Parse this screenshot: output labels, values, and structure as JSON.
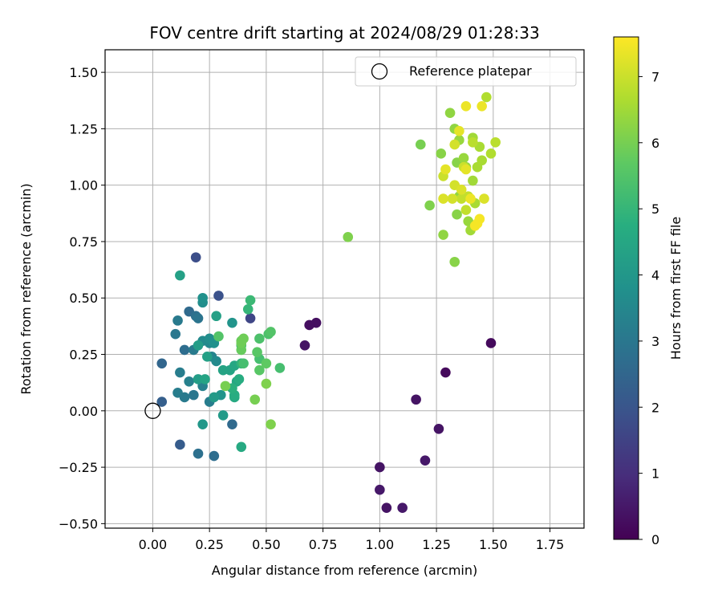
{
  "chart_data": {
    "type": "scatter",
    "title": "FOV centre drift starting at 2024/08/29 01:28:33",
    "xlabel": "Angular distance from reference (arcmin)",
    "ylabel": "Rotation from reference (arcmin)",
    "xlim": [
      -0.21,
      1.9
    ],
    "ylim": [
      -0.52,
      1.6
    ],
    "xticks": [
      "0.00",
      "0.25",
      "0.50",
      "0.75",
      "1.00",
      "1.25",
      "1.50",
      "1.75"
    ],
    "yticks": [
      "−0.50",
      "−0.25",
      "0.00",
      "0.25",
      "0.50",
      "0.75",
      "1.00",
      "1.25",
      "1.50"
    ],
    "xtick_values": [
      0,
      0.25,
      0.5,
      0.75,
      1.0,
      1.25,
      1.5,
      1.75
    ],
    "ytick_values": [
      -0.5,
      -0.25,
      0,
      0.25,
      0.5,
      0.75,
      1.0,
      1.25,
      1.5
    ],
    "grid": true,
    "legend": {
      "position": "top-right",
      "entries": [
        "Reference platepar"
      ]
    },
    "reference_point": {
      "name": "Reference platepar",
      "x": 0.0,
      "y": 0.0,
      "marker": "open-circle"
    },
    "colorbar": {
      "label": "Hours from first FF file",
      "colormap": "viridis",
      "range": [
        0,
        7.6
      ],
      "ticks": [
        "0",
        "1",
        "2",
        "3",
        "4",
        "5",
        "6",
        "7"
      ],
      "tick_values": [
        0,
        1,
        2,
        3,
        4,
        5,
        6,
        7
      ]
    },
    "points": [
      [
        0.72,
        0.39,
        0.3
      ],
      [
        0.69,
        0.38,
        0.3
      ],
      [
        0.67,
        0.29,
        0.4
      ],
      [
        1.49,
        0.3,
        0.2
      ],
      [
        1.29,
        0.17,
        0.2
      ],
      [
        1.16,
        0.05,
        0.4
      ],
      [
        1.26,
        -0.08,
        0.4
      ],
      [
        1.2,
        -0.22,
        0.5
      ],
      [
        1.0,
        -0.25,
        0.4
      ],
      [
        1.0,
        -0.35,
        0.5
      ],
      [
        1.03,
        -0.43,
        0.4
      ],
      [
        1.1,
        -0.43,
        0.5
      ],
      [
        0.43,
        0.41,
        1.6
      ],
      [
        0.19,
        0.68,
        1.8
      ],
      [
        0.29,
        0.51,
        1.9
      ],
      [
        0.12,
        -0.15,
        2.2
      ],
      [
        0.04,
        0.04,
        2.3
      ],
      [
        0.04,
        0.21,
        2.5
      ],
      [
        0.35,
        -0.06,
        2.6
      ],
      [
        0.27,
        -0.2,
        2.7
      ],
      [
        0.2,
        -0.19,
        2.8
      ],
      [
        0.14,
        0.27,
        2.7
      ],
      [
        0.16,
        0.44,
        2.6
      ],
      [
        0.19,
        0.42,
        2.8
      ],
      [
        0.2,
        0.41,
        2.9
      ],
      [
        0.1,
        0.34,
        3.0
      ],
      [
        0.11,
        0.4,
        3.1
      ],
      [
        0.18,
        0.27,
        3.1
      ],
      [
        0.11,
        0.08,
        3.2
      ],
      [
        0.14,
        0.06,
        3.1
      ],
      [
        0.18,
        0.07,
        3.0
      ],
      [
        0.12,
        0.17,
        3.2
      ],
      [
        0.16,
        0.13,
        3.3
      ],
      [
        0.25,
        0.04,
        3.2
      ],
      [
        0.22,
        0.11,
        3.3
      ],
      [
        0.26,
        0.24,
        3.4
      ],
      [
        0.25,
        0.3,
        3.5
      ],
      [
        0.28,
        0.22,
        3.6
      ],
      [
        0.22,
        0.31,
        3.6
      ],
      [
        0.25,
        0.32,
        3.7
      ],
      [
        0.22,
        0.48,
        3.7
      ],
      [
        0.22,
        0.5,
        3.8
      ],
      [
        0.27,
        0.3,
        3.8
      ],
      [
        0.3,
        0.07,
        3.9
      ],
      [
        0.35,
        0.39,
        3.9
      ],
      [
        0.22,
        -0.06,
        4.0
      ],
      [
        0.31,
        -0.02,
        4.1
      ],
      [
        0.27,
        0.06,
        4.1
      ],
      [
        0.2,
        0.14,
        4.2
      ],
      [
        0.2,
        0.29,
        4.2
      ],
      [
        0.24,
        0.24,
        4.3
      ],
      [
        0.28,
        0.42,
        4.3
      ],
      [
        0.12,
        0.6,
        4.3
      ],
      [
        0.23,
        0.14,
        4.4
      ],
      [
        0.31,
        0.18,
        4.4
      ],
      [
        0.34,
        0.18,
        4.4
      ],
      [
        0.36,
        0.2,
        4.5
      ],
      [
        0.37,
        0.13,
        4.5
      ],
      [
        0.36,
        0.06,
        4.6
      ],
      [
        0.39,
        -0.16,
        4.6
      ],
      [
        0.38,
        0.14,
        4.7
      ],
      [
        0.36,
        0.07,
        4.7
      ],
      [
        0.35,
        0.1,
        4.8
      ],
      [
        0.39,
        0.21,
        4.9
      ],
      [
        0.42,
        0.45,
        5.0
      ],
      [
        0.43,
        0.49,
        5.1
      ],
      [
        0.39,
        0.29,
        5.2
      ],
      [
        0.4,
        0.21,
        5.3
      ],
      [
        0.47,
        0.23,
        5.3
      ],
      [
        0.56,
        0.19,
        5.3
      ],
      [
        0.47,
        0.32,
        5.4
      ],
      [
        0.51,
        0.34,
        5.4
      ],
      [
        0.52,
        0.35,
        5.5
      ],
      [
        0.29,
        0.33,
        5.5
      ],
      [
        0.46,
        0.26,
        5.6
      ],
      [
        0.47,
        0.18,
        5.6
      ],
      [
        0.5,
        0.21,
        5.7
      ],
      [
        0.39,
        0.31,
        5.8
      ],
      [
        0.39,
        0.27,
        5.8
      ],
      [
        0.4,
        0.32,
        5.9
      ],
      [
        0.39,
        0.3,
        5.9
      ],
      [
        0.32,
        0.11,
        6.0
      ],
      [
        0.45,
        0.05,
        6.0
      ],
      [
        0.5,
        0.12,
        6.1
      ],
      [
        0.52,
        -0.06,
        6.1
      ],
      [
        0.86,
        0.77,
        6.1
      ],
      [
        1.18,
        1.18,
        6.0
      ],
      [
        1.22,
        0.91,
        6.1
      ],
      [
        1.27,
        1.14,
        6.2
      ],
      [
        1.28,
        0.78,
        6.3
      ],
      [
        1.31,
        1.32,
        6.3
      ],
      [
        1.33,
        0.66,
        6.2
      ],
      [
        1.33,
        1.25,
        6.3
      ],
      [
        1.34,
        1.1,
        6.2
      ],
      [
        1.34,
        0.87,
        6.2
      ],
      [
        1.35,
        0.95,
        6.3
      ],
      [
        1.35,
        1.2,
        6.4
      ],
      [
        1.37,
        1.12,
        6.4
      ],
      [
        1.38,
        1.08,
        6.4
      ],
      [
        1.39,
        0.84,
        6.4
      ],
      [
        1.4,
        0.8,
        6.5
      ],
      [
        1.41,
        1.21,
        6.5
      ],
      [
        1.41,
        1.02,
        6.5
      ],
      [
        1.42,
        0.92,
        6.6
      ],
      [
        1.43,
        1.08,
        6.6
      ],
      [
        1.44,
        1.17,
        6.6
      ],
      [
        1.45,
        1.11,
        6.6
      ],
      [
        1.47,
        1.39,
        6.7
      ],
      [
        1.49,
        1.14,
        6.7
      ],
      [
        1.51,
        1.19,
        6.8
      ],
      [
        1.41,
        1.19,
        6.8
      ],
      [
        1.38,
        0.89,
        6.9
      ],
      [
        1.39,
        0.95,
        6.9
      ],
      [
        1.36,
        0.94,
        6.9
      ],
      [
        1.28,
        1.04,
        7.0
      ],
      [
        1.37,
        1.08,
        7.0
      ],
      [
        1.33,
        1.18,
        7.1
      ],
      [
        1.33,
        1.0,
        7.1
      ],
      [
        1.32,
        0.94,
        7.1
      ],
      [
        1.28,
        0.94,
        7.2
      ],
      [
        1.36,
        0.98,
        7.2
      ],
      [
        1.46,
        0.94,
        7.2
      ],
      [
        1.38,
        1.07,
        7.3
      ],
      [
        1.29,
        1.07,
        7.3
      ],
      [
        1.35,
        1.24,
        7.3
      ],
      [
        1.38,
        1.35,
        7.4
      ],
      [
        1.45,
        1.35,
        7.4
      ],
      [
        1.4,
        0.94,
        7.4
      ],
      [
        1.44,
        0.85,
        7.5
      ],
      [
        1.42,
        0.82,
        7.5
      ],
      [
        1.43,
        0.83,
        7.5
      ]
    ]
  }
}
